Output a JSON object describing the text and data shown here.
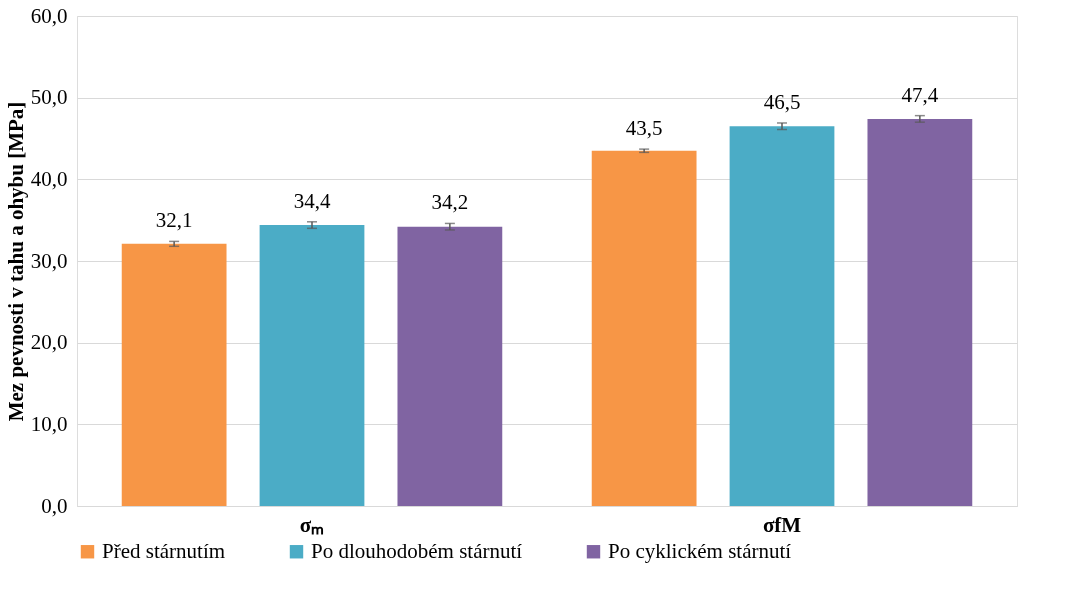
{
  "chart_data": {
    "type": "bar",
    "ylabel": "Mez pevnosti v tahu a ohybu [MPa]",
    "categories": [
      "σₘ",
      "σfM"
    ],
    "series": [
      {
        "name": "Před stárnutím",
        "color": "#f79646",
        "values": [
          32.1,
          43.5
        ],
        "errors": [
          0.3,
          0.2
        ],
        "value_labels": [
          "32,1",
          "43,5"
        ]
      },
      {
        "name": "Po dlouhodobém stárnutí",
        "color": "#4bacc6",
        "values": [
          34.4,
          46.5
        ],
        "errors": [
          0.4,
          0.4
        ],
        "value_labels": [
          "34,4",
          "46,5"
        ]
      },
      {
        "name": "Po cyklickém stárnutí",
        "color": "#8064a2",
        "values": [
          34.2,
          47.4
        ],
        "errors": [
          0.4,
          0.4
        ],
        "value_labels": [
          "34,2",
          "47,4"
        ]
      }
    ],
    "ylim": [
      0,
      60
    ],
    "yticks": [
      {
        "value": 0,
        "label": "0,0"
      },
      {
        "value": 10,
        "label": "10,0"
      },
      {
        "value": 20,
        "label": "20,0"
      },
      {
        "value": 30,
        "label": "30,0"
      },
      {
        "value": 40,
        "label": "40,0"
      },
      {
        "value": 50,
        "label": "50,0"
      },
      {
        "value": 60,
        "label": "60,0"
      }
    ],
    "grid": "y",
    "legend": "bottom"
  }
}
